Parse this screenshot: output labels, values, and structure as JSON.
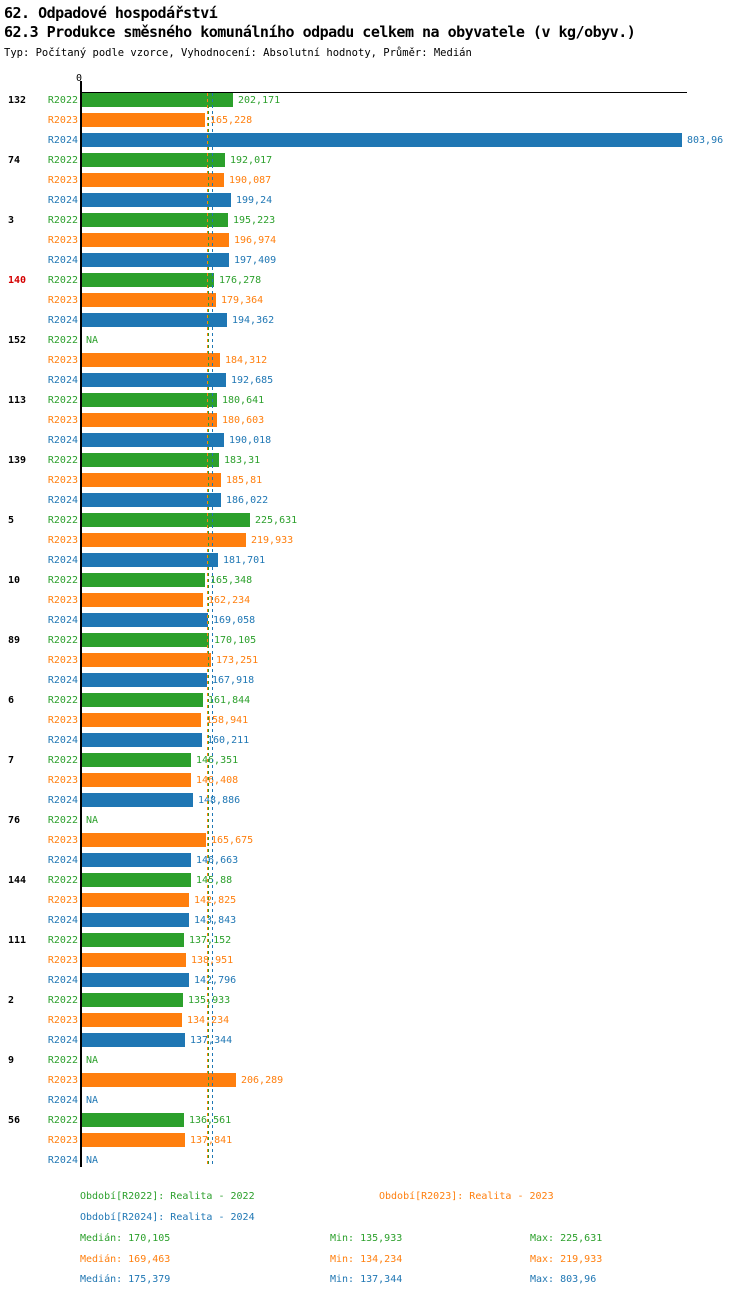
{
  "header": {
    "title": "62. Odpadové hospodářství",
    "subtitle": "62.3 Produkce směsného komunálního odpadu celkem na obyvatele (v kg/obyv.)",
    "meta": "Typ: Počítaný podle vzorce, Vyhodnocení: Absolutní hodnoty, Průměr: Medián"
  },
  "chart_data": {
    "type": "bar",
    "orientation": "horizontal",
    "title": "62.3 Produkce směsného komunálního odpadu celkem na obyvatele (v kg/obyv.)",
    "unit": "kg/obyv.",
    "series": [
      "R2022",
      "R2023",
      "R2024"
    ],
    "series_colors": {
      "R2022": "#2ca02c",
      "R2023": "#ff7f0e",
      "R2024": "#1f77b4"
    },
    "highlight_label_color": "#d40000",
    "na_label": "NA",
    "axis": {
      "origin_label": "0",
      "x_min": 0,
      "x_max_implied": 803.96
    },
    "groups": [
      {
        "label": "132",
        "label_color": "#000000",
        "values": [
          "202,171",
          "165,228",
          "803,96"
        ]
      },
      {
        "label": "74",
        "label_color": "#000000",
        "values": [
          "192,017",
          "190,087",
          "199,24"
        ]
      },
      {
        "label": "3",
        "label_color": "#000000",
        "values": [
          "195,223",
          "196,974",
          "197,409"
        ]
      },
      {
        "label": "140",
        "label_color": "#d40000",
        "values": [
          "176,278",
          "179,364",
          "194,362"
        ]
      },
      {
        "label": "152",
        "label_color": "#000000",
        "values": [
          "NA",
          "184,312",
          "192,685"
        ]
      },
      {
        "label": "113",
        "label_color": "#000000",
        "values": [
          "180,641",
          "180,603",
          "190,018"
        ]
      },
      {
        "label": "139",
        "label_color": "#000000",
        "values": [
          "183,31",
          "185,81",
          "186,022"
        ]
      },
      {
        "label": "5",
        "label_color": "#000000",
        "values": [
          "225,631",
          "219,933",
          "181,701"
        ]
      },
      {
        "label": "10",
        "label_color": "#000000",
        "values": [
          "165,348",
          "162,234",
          "169,058"
        ]
      },
      {
        "label": "89",
        "label_color": "#000000",
        "values": [
          "170,105",
          "173,251",
          "167,918"
        ]
      },
      {
        "label": "6",
        "label_color": "#000000",
        "values": [
          "161,844",
          "158,941",
          "160,211"
        ]
      },
      {
        "label": "7",
        "label_color": "#000000",
        "values": [
          "146,351",
          "146,408",
          "148,886"
        ]
      },
      {
        "label": "76",
        "label_color": "#000000",
        "values": [
          "NA",
          "165,675",
          "146,663"
        ]
      },
      {
        "label": "144",
        "label_color": "#000000",
        "values": [
          "145,88",
          "142,825",
          "143,843"
        ]
      },
      {
        "label": "111",
        "label_color": "#000000",
        "values": [
          "137,152",
          "138,951",
          "142,796"
        ]
      },
      {
        "label": "2",
        "label_color": "#000000",
        "values": [
          "135,933",
          "134,234",
          "137,344"
        ]
      },
      {
        "label": "9",
        "label_color": "#000000",
        "values": [
          "NA",
          "206,289",
          "NA"
        ]
      },
      {
        "label": "56",
        "label_color": "#000000",
        "values": [
          "136,561",
          "137,841",
          "NA"
        ]
      }
    ],
    "medians": {
      "R2022": 170.105,
      "R2023": 169.463,
      "R2024": 175.379
    },
    "legend": {
      "periods": [
        {
          "series": "R2022",
          "label": "Období[R2022]: Realita - 2022"
        },
        {
          "series": "R2023",
          "label": "Období[R2023]: Realita - 2023"
        },
        {
          "series": "R2024",
          "label": "Období[R2024]: Realita - 2024"
        }
      ],
      "stats": [
        {
          "series": "R2022",
          "median": "Medián: 170,105",
          "min": "Min: 135,933",
          "max": "Max: 225,631"
        },
        {
          "series": "R2023",
          "median": "Medián: 169,463",
          "min": "Min: 134,234",
          "max": "Max: 219,933"
        },
        {
          "series": "R2024",
          "median": "Medián: 175,379",
          "min": "Min: 137,344",
          "max": "Max: 803,96"
        }
      ]
    }
  }
}
